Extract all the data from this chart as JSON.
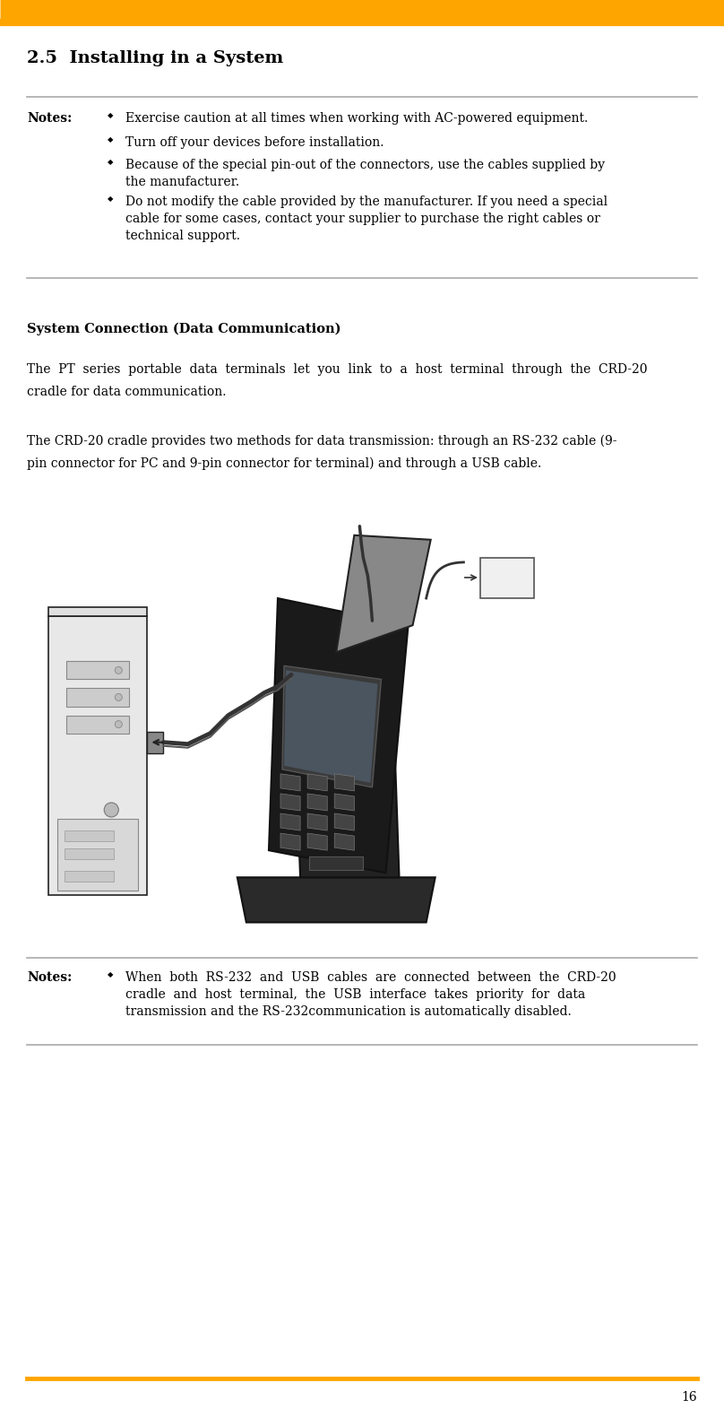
{
  "page_width": 8.08,
  "page_height": 15.8,
  "dpi": 100,
  "bg_color": "#ffffff",
  "orange_color": "#FFA500",
  "gray_line_color": "#aaaaaa",
  "text_color": "#000000",
  "font_family": "serif",
  "title": "2.5  Installing in a System",
  "notes1_label": "Notes:",
  "notes1_bullets": [
    "Exercise caution at all times when working with AC-powered equipment.",
    "Turn off your devices before installation.",
    "Because of the special pin-out of the connectors, use the cables supplied by\nthe manufacturer.",
    "Do not modify the cable provided by the manufacturer. If you need a special\ncable for some cases, contact your supplier to purchase the right cables or\ntechnical support."
  ],
  "section_title": "System Connection (Data Communication)",
  "para1_line1": "The  PT  series  portable  data  terminals  let  you  link  to  a  host  terminal  through  the  CRD-20",
  "para1_line2": "cradle for data communication.",
  "para2_line1": "The CRD-20 cradle provides two methods for data transmission: through an RS-232 cable (9-",
  "para2_line2": "pin connector for PC and 9-pin connector for terminal) and through a USB cable.",
  "notes2_label": "Notes:",
  "notes2_bullet": "When  both  RS-232  and  USB  cables  are  connected  between  the  CRD-20\ncradle  and  host  terminal,  the  USB  interface  takes  priority  for  data\ntransmission and the RS-232communication is automatically disabled.",
  "page_number": "16"
}
